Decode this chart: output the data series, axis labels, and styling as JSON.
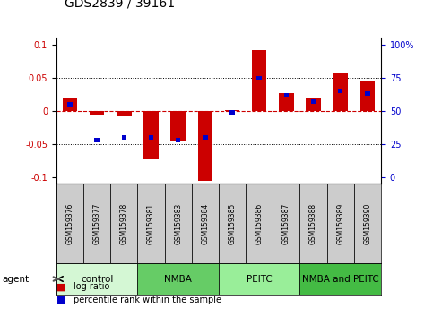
{
  "title": "GDS2839 / 39161",
  "samples": [
    "GSM159376",
    "GSM159377",
    "GSM159378",
    "GSM159381",
    "GSM159383",
    "GSM159384",
    "GSM159385",
    "GSM159386",
    "GSM159387",
    "GSM159388",
    "GSM159389",
    "GSM159390"
  ],
  "log_ratio": [
    0.02,
    -0.005,
    -0.008,
    -0.073,
    -0.045,
    -0.105,
    0.001,
    0.092,
    0.027,
    0.02,
    0.058,
    0.045
  ],
  "percentile_rank": [
    55,
    28,
    30,
    30,
    28,
    30,
    49,
    75,
    62,
    57,
    65,
    63
  ],
  "groups": [
    {
      "label": "control",
      "start": 0,
      "end": 3,
      "color": "#d4f7d4"
    },
    {
      "label": "NMBA",
      "start": 3,
      "end": 6,
      "color": "#66cc66"
    },
    {
      "label": "PEITC",
      "start": 6,
      "end": 9,
      "color": "#99ee99"
    },
    {
      "label": "NMBA and PEITC",
      "start": 9,
      "end": 12,
      "color": "#44bb44"
    }
  ],
  "ylim": [
    -0.11,
    0.11
  ],
  "yticks_left": [
    -0.1,
    -0.05,
    0,
    0.05,
    0.1
  ],
  "yticks_right": [
    0,
    25,
    50,
    75,
    100
  ],
  "bar_color_red": "#cc0000",
  "bar_color_blue": "#0000cc",
  "zero_line_color": "#cc0000",
  "bg_color": "#ffffff",
  "plot_bg": "#ffffff",
  "label_log": "log ratio",
  "label_pct": "percentile rank within the sample",
  "agent_label": "agent",
  "bar_width": 0.55,
  "blue_bar_height": 0.006,
  "blue_bar_width": 0.18,
  "sample_box_color": "#cccccc",
  "title_fontsize": 10,
  "tick_fontsize": 7,
  "sample_fontsize": 5.5,
  "group_fontsize": 7.5
}
